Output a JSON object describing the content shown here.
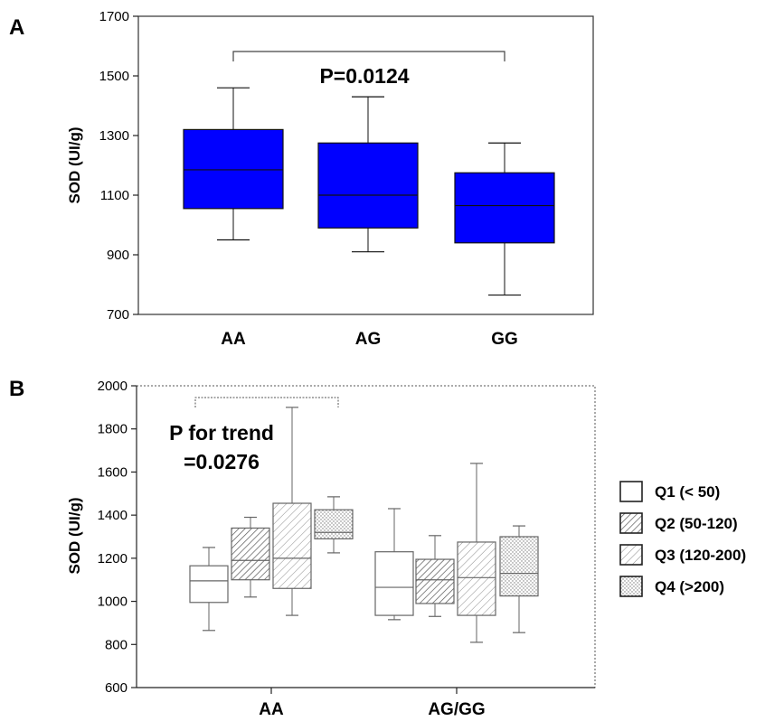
{
  "chart_data": [
    {
      "panel": "A",
      "type": "box",
      "ylabel": "SOD (UI/g)",
      "ylim": [
        700,
        1700
      ],
      "yticks": [
        700,
        900,
        1100,
        1300,
        1500,
        1700
      ],
      "categories": [
        "AA",
        "AG",
        "GG"
      ],
      "box_color": "#0000ff",
      "series": [
        {
          "values": [
            {
              "category": "AA",
              "min": 950,
              "q1": 1055,
              "median": 1185,
              "q3": 1320,
              "max": 1460
            },
            {
              "category": "AG",
              "min": 910,
              "q1": 990,
              "median": 1100,
              "q3": 1275,
              "max": 1430
            },
            {
              "category": "GG",
              "min": 765,
              "q1": 940,
              "median": 1065,
              "q3": 1175,
              "max": 1275
            }
          ]
        }
      ],
      "annotation": {
        "text": "P=0.0124",
        "spans": [
          "AA",
          "GG"
        ]
      }
    },
    {
      "panel": "B",
      "type": "box",
      "ylabel": "SOD (UI/g)",
      "ylim": [
        600,
        2000
      ],
      "yticks": [
        600,
        800,
        1000,
        1200,
        1400,
        1600,
        1800,
        2000
      ],
      "categories": [
        "AA",
        "AG/GG"
      ],
      "series": [
        {
          "name": "Q1 (< 50)",
          "pattern": "open",
          "values": [
            {
              "category": "AA",
              "min": 865,
              "q1": 995,
              "median": 1095,
              "q3": 1165,
              "max": 1250
            },
            {
              "category": "AG/GG",
              "min": 915,
              "q1": 935,
              "median": 1065,
              "q3": 1230,
              "max": 1430
            }
          ]
        },
        {
          "name": "Q2 (50-120)",
          "pattern": "hatch-dense",
          "values": [
            {
              "category": "AA",
              "min": 1020,
              "q1": 1100,
              "median": 1190,
              "q3": 1340,
              "max": 1390
            },
            {
              "category": "AG/GG",
              "min": 930,
              "q1": 990,
              "median": 1100,
              "q3": 1195,
              "max": 1305
            }
          ]
        },
        {
          "name": "Q3 (120-200)",
          "pattern": "hatch-light",
          "values": [
            {
              "category": "AA",
              "min": 935,
              "q1": 1060,
              "median": 1200,
              "q3": 1455,
              "max": 1900
            },
            {
              "category": "AG/GG",
              "min": 810,
              "q1": 935,
              "median": 1110,
              "q3": 1275,
              "max": 1640
            }
          ]
        },
        {
          "name": "Q4 (>200)",
          "pattern": "dotted",
          "values": [
            {
              "category": "AA",
              "min": 1225,
              "q1": 1290,
              "median": 1320,
              "q3": 1425,
              "max": 1485
            },
            {
              "category": "AG/GG",
              "min": 855,
              "q1": 1025,
              "median": 1130,
              "q3": 1300,
              "max": 1350
            }
          ]
        }
      ],
      "annotation": {
        "line1": "P for trend",
        "line2": "=0.0276",
        "spans": "AA"
      },
      "legend_position": "right"
    }
  ]
}
